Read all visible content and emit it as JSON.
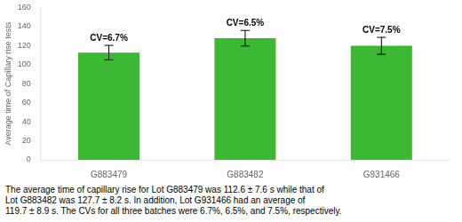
{
  "chart_data": {
    "type": "bar",
    "categories": [
      "G883479",
      "G883482",
      "G931466"
    ],
    "values": [
      112.6,
      127.7,
      119.7
    ],
    "errors": [
      7.6,
      8.2,
      8.9
    ],
    "annotations": [
      "CV=6.7%",
      "CV=6.5%",
      "CV=7.5%"
    ],
    "color": "#3cb832",
    "ylim": [
      0,
      160
    ],
    "yticks": [
      0,
      20,
      40,
      60,
      80,
      100,
      120,
      140,
      160
    ],
    "ylabel": "Average time of Capillary rise tests",
    "caption": [
      "The average time of capillary rise for Lot G883479 was 112.6 ± 7.6 s while that of",
      "Lot G883482 was 127.7 ± 8.2 s. In addition, Lot G931466 had an average of",
      "119.7 ± 8.9 s. The CVs for all three batches were 6.7%, 6.5%, and 7.5%, respectively."
    ],
    "grid": false
  }
}
